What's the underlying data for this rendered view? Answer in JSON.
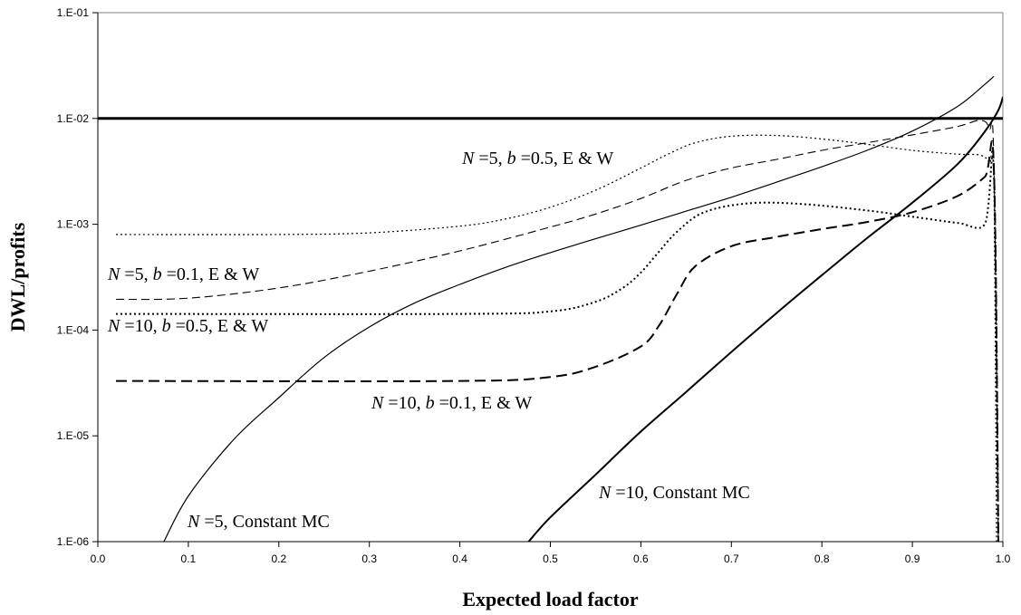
{
  "chart_data": {
    "type": "line",
    "xlabel": "Expected load factor",
    "ylabel": "DWL/profits",
    "xlim": [
      0.0,
      1.0
    ],
    "ylim": [
      1e-06,
      0.1
    ],
    "yscale": "log",
    "grid": false,
    "legend": "none",
    "x_ticks": [
      "0.0",
      "0.1",
      "0.2",
      "0.3",
      "0.4",
      "0.5",
      "0.6",
      "0.7",
      "0.8",
      "0.9",
      "1.0"
    ],
    "y_ticks": [
      "1.E-06",
      "1.E-05",
      "1.E-04",
      "1.E-03",
      "1.E-02",
      "1.E-01"
    ],
    "reference_line": {
      "y": 0.01
    },
    "series": [
      {
        "style": "thin-solid",
        "points": [
          [
            0.073,
            1e-06
          ],
          [
            0.1,
            2.7e-06
          ],
          [
            0.15,
            9.2e-06
          ],
          [
            0.2,
            2.3e-05
          ],
          [
            0.25,
            5.5e-05
          ],
          [
            0.3,
            0.000107
          ],
          [
            0.35,
            0.00018
          ],
          [
            0.4,
            0.00027
          ],
          [
            0.45,
            0.00039
          ],
          [
            0.5,
            0.00054
          ],
          [
            0.55,
            0.00073
          ],
          [
            0.6,
            0.00098
          ],
          [
            0.65,
            0.00133
          ],
          [
            0.7,
            0.0018
          ],
          [
            0.75,
            0.0025
          ],
          [
            0.8,
            0.0035
          ],
          [
            0.85,
            0.005
          ],
          [
            0.9,
            0.0076
          ],
          [
            0.95,
            0.013
          ],
          [
            0.98,
            0.021
          ],
          [
            0.99,
            0.025
          ]
        ]
      },
      {
        "style": "thick-solid",
        "points": [
          [
            0.476,
            1e-06
          ],
          [
            0.5,
            1.7e-06
          ],
          [
            0.55,
            4.3e-06
          ],
          [
            0.6,
            1.1e-05
          ],
          [
            0.65,
            2.6e-05
          ],
          [
            0.7,
            6.2e-05
          ],
          [
            0.75,
            0.000145
          ],
          [
            0.8,
            0.00033
          ],
          [
            0.85,
            0.00074
          ],
          [
            0.9,
            0.0016
          ],
          [
            0.95,
            0.0037
          ],
          [
            0.98,
            0.0075
          ],
          [
            0.995,
            0.012
          ],
          [
            1.0,
            0.016
          ]
        ]
      },
      {
        "style": "fine-dotted",
        "points": [
          [
            0.02,
            0.0008
          ],
          [
            0.2,
            0.0008
          ],
          [
            0.3,
            0.00083
          ],
          [
            0.4,
            0.00096
          ],
          [
            0.45,
            0.00112
          ],
          [
            0.5,
            0.00145
          ],
          [
            0.55,
            0.0021
          ],
          [
            0.6,
            0.0034
          ],
          [
            0.63,
            0.0046
          ],
          [
            0.66,
            0.0059
          ],
          [
            0.7,
            0.0068
          ],
          [
            0.75,
            0.0069
          ],
          [
            0.8,
            0.0064
          ],
          [
            0.85,
            0.0057
          ],
          [
            0.9,
            0.005
          ],
          [
            0.95,
            0.0046
          ],
          [
            0.975,
            0.0045
          ],
          [
            0.985,
            0.0038
          ],
          [
            0.99,
            0.0025
          ],
          [
            0.993,
            1e-06
          ]
        ]
      },
      {
        "style": "thin-dashed",
        "points": [
          [
            0.02,
            0.000195
          ],
          [
            0.1,
            0.0002
          ],
          [
            0.2,
            0.00025
          ],
          [
            0.3,
            0.00036
          ],
          [
            0.4,
            0.00056
          ],
          [
            0.5,
            0.00094
          ],
          [
            0.55,
            0.00125
          ],
          [
            0.6,
            0.00175
          ],
          [
            0.65,
            0.0026
          ],
          [
            0.7,
            0.0034
          ],
          [
            0.75,
            0.0041
          ],
          [
            0.8,
            0.005
          ],
          [
            0.85,
            0.0059
          ],
          [
            0.9,
            0.007
          ],
          [
            0.95,
            0.0084
          ],
          [
            0.975,
            0.0096
          ],
          [
            0.985,
            0.008
          ],
          [
            0.99,
            0.004
          ],
          [
            0.995,
            1e-06
          ]
        ]
      },
      {
        "style": "medium-dotted",
        "points": [
          [
            0.02,
            0.000142
          ],
          [
            0.4,
            0.000142
          ],
          [
            0.5,
            0.00015
          ],
          [
            0.55,
            0.000185
          ],
          [
            0.58,
            0.00025
          ],
          [
            0.6,
            0.00035
          ],
          [
            0.62,
            0.00055
          ],
          [
            0.64,
            0.00085
          ],
          [
            0.67,
            0.0013
          ],
          [
            0.72,
            0.00158
          ],
          [
            0.78,
            0.00155
          ],
          [
            0.85,
            0.00135
          ],
          [
            0.9,
            0.00118
          ],
          [
            0.95,
            0.00103
          ],
          [
            0.98,
            0.001
          ],
          [
            0.99,
            0.0032
          ],
          [
            0.995,
            1e-06
          ]
        ]
      },
      {
        "style": "thick-dashed",
        "points": [
          [
            0.02,
            3.3e-05
          ],
          [
            0.4,
            3.3e-05
          ],
          [
            0.5,
            3.6e-05
          ],
          [
            0.55,
            4.5e-05
          ],
          [
            0.6,
            7e-05
          ],
          [
            0.62,
            0.00011
          ],
          [
            0.64,
            0.00022
          ],
          [
            0.66,
            0.0004
          ],
          [
            0.7,
            0.00062
          ],
          [
            0.75,
            0.00076
          ],
          [
            0.8,
            0.0009
          ],
          [
            0.85,
            0.00105
          ],
          [
            0.9,
            0.0013
          ],
          [
            0.95,
            0.00185
          ],
          [
            0.98,
            0.0028
          ],
          [
            0.99,
            0.0035
          ],
          [
            0.995,
            1e-06
          ]
        ]
      }
    ],
    "annotations": [
      {
        "id": "n5-b05",
        "parts": [
          {
            "t": "N",
            "i": true
          },
          {
            "t": " =5, ",
            "i": false
          },
          {
            "t": "b",
            "i": true
          },
          {
            "t": " =0.5, E & W",
            "i": false
          }
        ]
      },
      {
        "id": "n5-b01",
        "parts": [
          {
            "t": "N",
            "i": true
          },
          {
            "t": " =5, ",
            "i": false
          },
          {
            "t": "b",
            "i": true
          },
          {
            "t": " =0.1, E & W",
            "i": false
          }
        ]
      },
      {
        "id": "n10-b05",
        "parts": [
          {
            "t": "N",
            "i": true
          },
          {
            "t": " =10, ",
            "i": false
          },
          {
            "t": "b",
            "i": true
          },
          {
            "t": " =0.5, E & W",
            "i": false
          }
        ]
      },
      {
        "id": "n10-b01",
        "parts": [
          {
            "t": "N",
            "i": true
          },
          {
            "t": " =10, ",
            "i": false
          },
          {
            "t": "b",
            "i": true
          },
          {
            "t": " =0.1, E & W",
            "i": false
          }
        ]
      },
      {
        "id": "n10-cmc",
        "parts": [
          {
            "t": "N",
            "i": true
          },
          {
            "t": " =10, Constant MC",
            "i": false
          }
        ]
      },
      {
        "id": "n5-cmc",
        "parts": [
          {
            "t": "N",
            "i": true
          },
          {
            "t": " =5, Constant MC",
            "i": false
          }
        ]
      }
    ]
  }
}
